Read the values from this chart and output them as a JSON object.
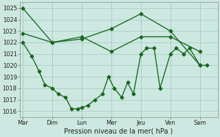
{
  "background_color": "#cce8e0",
  "grid_color": "#aaccC4",
  "line_color": "#1a6620",
  "xlabel": "Pression niveau de la mer( hPa )",
  "ylim": [
    1015.5,
    1025.5
  ],
  "yticks": [
    1016,
    1017,
    1018,
    1019,
    1020,
    1021,
    1022,
    1023,
    1024,
    1025
  ],
  "x_labels": [
    "Mar",
    "Dim",
    "Lun",
    "Mer",
    "Jeu",
    "Ven",
    "Sam"
  ],
  "x_boundaries": [
    0,
    1,
    2,
    3,
    4,
    5,
    6
  ],
  "xlim": [
    -0.1,
    6.6
  ],
  "line_max": {
    "x": [
      0.0,
      1.0,
      2.0,
      3.0,
      4.0,
      5.0,
      6.0
    ],
    "y": [
      1025.0,
      1022.0,
      1022.3,
      1023.2,
      1024.5,
      1023.0,
      1020.0
    ]
  },
  "line_mid": {
    "x": [
      0.0,
      1.0,
      2.0,
      3.0,
      4.0,
      5.0,
      6.0
    ],
    "y": [
      1022.8,
      1022.0,
      1022.5,
      1021.2,
      1022.5,
      1022.5,
      1021.2
    ]
  },
  "line_min": {
    "x": [
      0.0,
      0.3,
      0.55,
      0.75,
      1.0,
      1.2,
      1.45,
      1.65,
      1.85,
      2.0,
      2.2,
      2.45,
      2.7,
      2.9,
      3.1,
      3.35,
      3.55,
      3.75,
      4.0,
      4.2,
      4.45,
      4.65,
      5.0,
      5.2,
      5.45,
      5.65,
      6.0,
      6.25
    ],
    "y": [
      1022.0,
      1020.8,
      1019.5,
      1018.3,
      1018.0,
      1017.5,
      1017.2,
      1016.2,
      1016.2,
      1016.3,
      1016.5,
      1017.0,
      1017.5,
      1019.0,
      1018.0,
      1017.2,
      1018.5,
      1017.5,
      1021.0,
      1021.5,
      1021.5,
      1018.0,
      1021.0,
      1021.5,
      1021.0,
      1021.5,
      1020.0,
      1020.0
    ]
  },
  "marker": "D",
  "markersize": 2.5,
  "linewidth": 1.0,
  "tick_fontsize": 6,
  "xlabel_fontsize": 7
}
